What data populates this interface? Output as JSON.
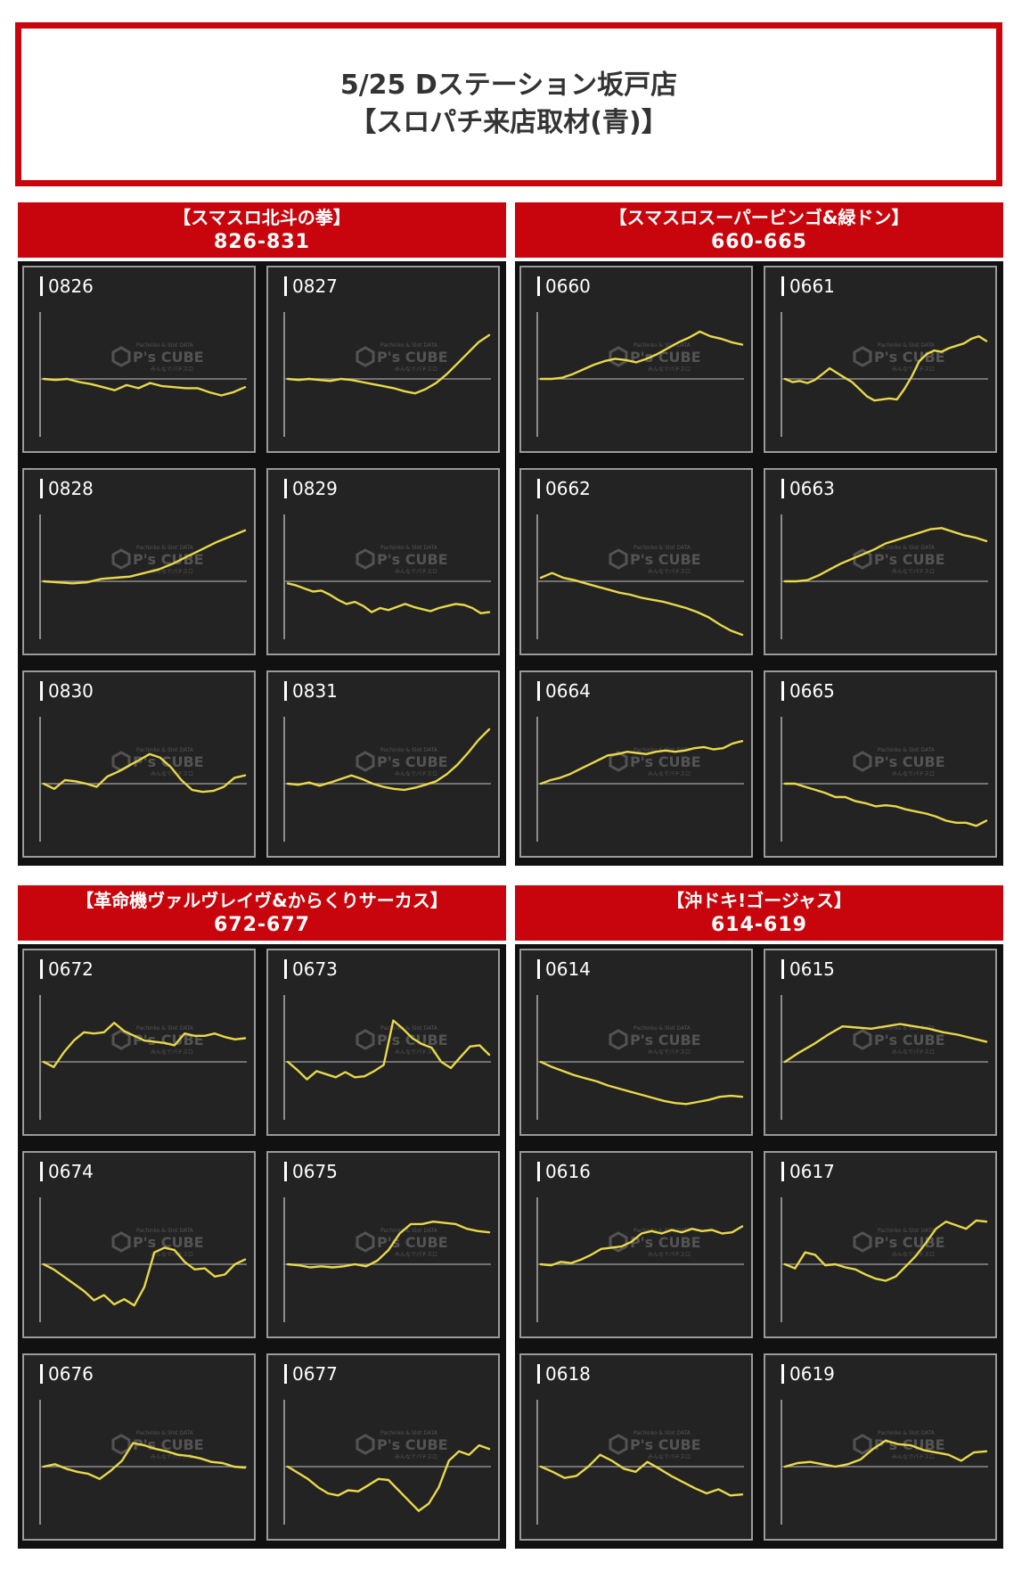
{
  "header": {
    "line1": "5/25 Dステーション坂戸店",
    "line2": "【スロパチ来店取材(青)】"
  },
  "watermark": {
    "name": "P's CUBE",
    "tagline": "Pachinko & Slot DATA",
    "subline": "みんなでパチスロ"
  },
  "colors": {
    "line": "#e8d84a",
    "banner": "#c8050c",
    "panel_bg": "#232323",
    "baseline": "#8c8c8c"
  },
  "sections": [
    {
      "title": "【スマスロ北斗の拳】",
      "range": "826-831"
    },
    {
      "title": "【スマスロスーパービンゴ&緑ドン】",
      "range": "660-665"
    },
    {
      "title": "【革命機ヴァルヴレイヴ&からくりサーカス】",
      "range": "672-677"
    },
    {
      "title": "【沖ドキ!ゴージャス】",
      "range": "614-619"
    }
  ],
  "chart_data": [
    {
      "type": "line",
      "title": "0826",
      "y": [
        0,
        -1,
        0,
        -3,
        -5,
        -8,
        -11,
        -6,
        -9,
        -4,
        -7,
        -8,
        -9,
        -9,
        -13,
        -16,
        -13,
        -8
      ]
    },
    {
      "type": "line",
      "title": "0827",
      "y": [
        0,
        -1,
        0,
        -1,
        -2,
        0,
        -1,
        -3,
        -5,
        -7,
        -9,
        -12,
        -14,
        -10,
        -4,
        4,
        13,
        22,
        31,
        37
      ]
    },
    {
      "type": "line",
      "title": "0828",
      "y": [
        0,
        -1,
        -2,
        -1,
        2,
        3,
        4,
        7,
        10,
        15,
        21,
        27,
        33,
        38,
        43
      ]
    },
    {
      "type": "line",
      "title": "0829",
      "y": [
        -2,
        -4,
        -7,
        -10,
        -9,
        -13,
        -18,
        -22,
        -20,
        -24,
        -30,
        -26,
        -28,
        -25,
        -22,
        -25,
        -27,
        -29,
        -26,
        -24,
        -22,
        -23,
        -26,
        -31,
        -30
      ]
    },
    {
      "type": "line",
      "title": "0830",
      "y": [
        0,
        -5,
        3,
        2,
        0,
        -3,
        6,
        10,
        15,
        20,
        25,
        22,
        14,
        3,
        -6,
        -8,
        -7,
        -3,
        5,
        7
      ]
    },
    {
      "type": "line",
      "title": "0831",
      "y": [
        0,
        -1,
        1,
        -2,
        1,
        4,
        7,
        4,
        0,
        -3,
        -5,
        -6,
        -4,
        -1,
        2,
        8,
        16,
        26,
        37,
        46
      ]
    },
    {
      "type": "line",
      "title": "0660",
      "y": [
        0,
        0,
        1,
        4,
        8,
        12,
        15,
        17,
        16,
        14,
        17,
        21,
        26,
        31,
        35,
        40,
        36,
        34,
        31,
        29
      ]
    },
    {
      "type": "line",
      "title": "0661",
      "y": [
        0,
        -3,
        -2,
        -4,
        -1,
        4,
        9,
        5,
        1,
        -3,
        -10,
        -17,
        -21,
        -20,
        -19,
        -20,
        -10,
        2,
        15,
        21,
        24,
        23,
        26,
        28,
        30,
        34,
        36,
        32
      ]
    },
    {
      "type": "line",
      "title": "0662",
      "y": [
        3,
        7,
        3,
        1,
        -2,
        -5,
        -8,
        -11,
        -13,
        -16,
        -18,
        -20,
        -23,
        -26,
        -30,
        -35,
        -42,
        -48,
        -52
      ]
    },
    {
      "type": "line",
      "title": "0663",
      "y": [
        0,
        0,
        1,
        5,
        10,
        15,
        19,
        23,
        27,
        32,
        35,
        38,
        41,
        44,
        45,
        42,
        39,
        37,
        34
      ]
    },
    {
      "type": "line",
      "title": "0664",
      "y": [
        0,
        3,
        5,
        8,
        12,
        16,
        20,
        24,
        25,
        27,
        26,
        25,
        27,
        28,
        27,
        28,
        30,
        31,
        29,
        30,
        34,
        36
      ]
    },
    {
      "type": "line",
      "title": "0665",
      "y": [
        0,
        0,
        -3,
        -6,
        -9,
        -13,
        -13,
        -17,
        -19,
        -22,
        -21,
        -22,
        -25,
        -27,
        -29,
        -32,
        -36,
        -38,
        -38,
        -41,
        -36
      ]
    },
    {
      "type": "line",
      "title": "0672",
      "y": [
        0,
        -5,
        8,
        18,
        25,
        24,
        25,
        33,
        26,
        22,
        18,
        17,
        16,
        14,
        24,
        22,
        22,
        24,
        21,
        19,
        20
      ]
    },
    {
      "type": "line",
      "title": "0673",
      "y": [
        0,
        -8,
        -17,
        -9,
        -12,
        -15,
        -10,
        -15,
        -14,
        -9,
        -3,
        35,
        28,
        20,
        15,
        12,
        0,
        -6,
        4,
        13,
        14,
        6
      ]
    },
    {
      "type": "line",
      "title": "0674",
      "y": [
        0,
        -5,
        -12,
        -19,
        -26,
        -35,
        -30,
        -39,
        -34,
        -40,
        -22,
        10,
        14,
        12,
        2,
        -5,
        -4,
        -12,
        -10,
        0,
        4
      ]
    },
    {
      "type": "line",
      "title": "0675",
      "y": [
        0,
        -1,
        -3,
        -2,
        -3,
        -2,
        0,
        -2,
        3,
        12,
        26,
        34,
        34,
        36,
        35,
        34,
        30,
        28,
        27
      ]
    },
    {
      "type": "line",
      "title": "0676",
      "y": [
        0,
        2,
        -2,
        -5,
        -7,
        -12,
        -4,
        5,
        20,
        18,
        15,
        13,
        10,
        9,
        7,
        4,
        3,
        0,
        -1
      ]
    },
    {
      "type": "line",
      "title": "0677",
      "y": [
        0,
        -6,
        -12,
        -20,
        -26,
        -28,
        -23,
        -24,
        -18,
        -12,
        -13,
        -23,
        -33,
        -43,
        -36,
        -20,
        5,
        13,
        10,
        18,
        15
      ]
    },
    {
      "type": "line",
      "title": "0614",
      "y": [
        0,
        -5,
        -9,
        -13,
        -16,
        -19,
        -23,
        -26,
        -29,
        -32,
        -35,
        -38,
        -40,
        -41,
        -39,
        -37,
        -34,
        -33,
        -34
      ]
    },
    {
      "type": "line",
      "title": "0615",
      "y": [
        0,
        8,
        15,
        23,
        30,
        29,
        28,
        30,
        32,
        30,
        28,
        25,
        23,
        20,
        17
      ]
    },
    {
      "type": "line",
      "title": "0616",
      "y": [
        0,
        -1,
        2,
        1,
        4,
        8,
        13,
        14,
        15,
        19,
        26,
        28,
        26,
        29,
        27,
        30,
        28,
        29,
        26,
        27,
        32
      ]
    },
    {
      "type": "line",
      "title": "0617",
      "y": [
        0,
        -4,
        10,
        8,
        -1,
        0,
        -3,
        -5,
        -10,
        -14,
        -16,
        -12,
        -2,
        7,
        18,
        30,
        36,
        33,
        30,
        37,
        36
      ]
    },
    {
      "type": "line",
      "title": "0618",
      "y": [
        0,
        -5,
        -11,
        -9,
        0,
        10,
        5,
        -2,
        -5,
        4,
        -2,
        -9,
        -15,
        -21,
        -26,
        -22,
        -28,
        -27
      ]
    },
    {
      "type": "line",
      "title": "0619",
      "y": [
        0,
        3,
        4,
        2,
        0,
        2,
        6,
        15,
        22,
        19,
        18,
        14,
        12,
        10,
        5,
        12,
        13
      ]
    }
  ]
}
